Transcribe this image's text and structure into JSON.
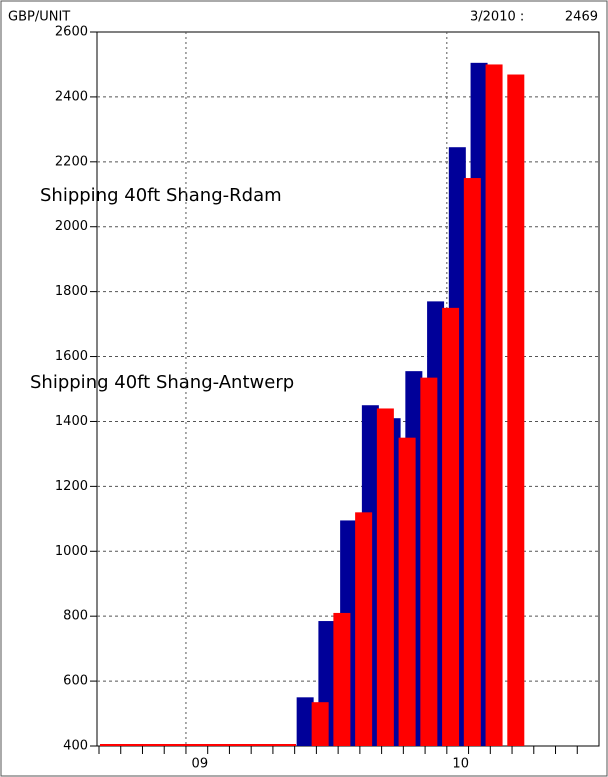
{
  "chart_data": {
    "type": "bar",
    "unit_label": "GBP/UNIT",
    "header_label": "3/2010 :",
    "header_value": 2469,
    "annotations": [
      {
        "text": "Shipping 40ft Shang-Rdam",
        "color": "#ff0000"
      },
      {
        "text": "Shipping 40ft Shang-Antwerp",
        "color": "#000099"
      }
    ],
    "categories": [
      null,
      null,
      null,
      null,
      "09",
      null,
      null,
      null,
      null,
      null,
      null,
      null,
      null,
      null,
      null,
      null,
      "10",
      null,
      null,
      null,
      null,
      null,
      null
    ],
    "series": [
      {
        "name": "Shipping 40ft Shang-Antwerp",
        "color": "#000099",
        "values": [
          null,
          null,
          null,
          null,
          null,
          null,
          null,
          null,
          null,
          550,
          785,
          1095,
          1450,
          1410,
          1555,
          1770,
          2245,
          2505,
          null,
          null,
          null,
          null,
          null
        ]
      },
      {
        "name": "Shipping 40ft Shang-Rdam",
        "color": "#ff0000",
        "values": [
          null,
          null,
          null,
          null,
          null,
          null,
          null,
          null,
          null,
          535,
          810,
          1120,
          1440,
          1350,
          1535,
          1750,
          2150,
          2500,
          2469,
          null,
          null,
          null,
          null
        ]
      }
    ],
    "ylim": [
      400,
      2600
    ],
    "yticks": [
      400,
      600,
      800,
      1000,
      1200,
      1400,
      1600,
      1800,
      2000,
      2200,
      2400,
      2600
    ],
    "grid": true
  }
}
